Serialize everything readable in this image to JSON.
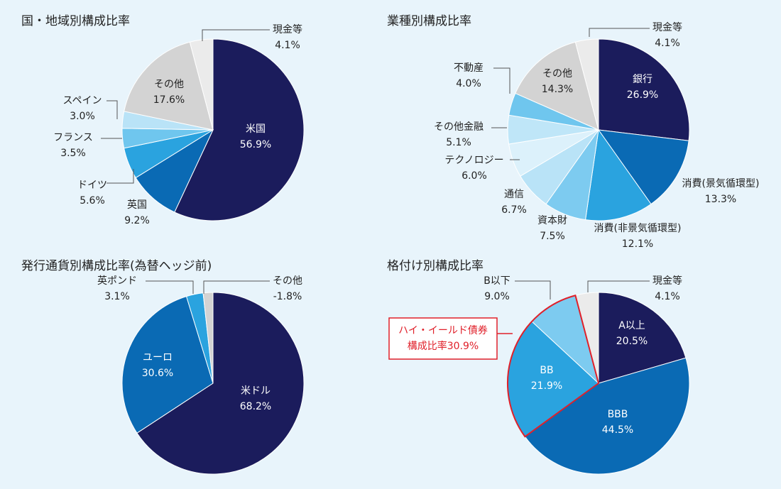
{
  "chart_data": [
    {
      "type": "pie",
      "title": "国・地域別構成比率",
      "categories": [
        "米国",
        "英国",
        "ドイツ",
        "フランス",
        "スペイン",
        "その他",
        "現金等"
      ],
      "values": [
        56.9,
        9.2,
        5.6,
        3.5,
        3.0,
        17.6,
        4.1
      ],
      "value_labels": [
        "56.9%",
        "9.2%",
        "5.6%",
        "3.5%",
        "3.0%",
        "17.6%",
        "4.1%"
      ],
      "colors": [
        "#1b1c5c",
        "#0a6ab4",
        "#2aa3df",
        "#6fc6ee",
        "#b9e3f7",
        "#d3d3d3",
        "#ebebeb"
      ]
    },
    {
      "type": "pie",
      "title": "業種別構成比率",
      "categories": [
        "銀行",
        "消費(景気循環型)",
        "消費(非景気循環型)",
        "資本財",
        "通信",
        "テクノロジー",
        "その他金融",
        "不動産",
        "その他",
        "現金等"
      ],
      "values": [
        26.9,
        13.3,
        12.1,
        7.5,
        6.7,
        6.0,
        5.1,
        4.0,
        14.3,
        4.1
      ],
      "value_labels": [
        "26.9%",
        "13.3%",
        "12.1%",
        "7.5%",
        "6.7%",
        "6.0%",
        "5.1%",
        "4.0%",
        "14.3%",
        "4.1%"
      ],
      "colors": [
        "#1b1c5c",
        "#0a6ab4",
        "#2aa3df",
        "#7dcbf0",
        "#b9e3f7",
        "#dcf1fb",
        "#bfe6f8",
        "#6fc6ee",
        "#d3d3d3",
        "#ebebeb"
      ]
    },
    {
      "type": "pie",
      "title": "発行通貨別構成比率(為替ヘッジ前)",
      "categories": [
        "米ドル",
        "ユーロ",
        "英ポンド",
        "その他"
      ],
      "values": [
        68.2,
        30.6,
        3.1,
        -1.8
      ],
      "value_labels": [
        "68.2%",
        "30.6%",
        "3.1%",
        "-1.8%"
      ],
      "colors": [
        "#1b1c5c",
        "#0a6ab4",
        "#2aa3df",
        "#d3d3d3"
      ]
    },
    {
      "type": "pie",
      "title": "格付け別構成比率",
      "categories": [
        "A以上",
        "BBB",
        "BB",
        "B以下",
        "現金等"
      ],
      "values": [
        20.5,
        44.5,
        21.9,
        9.0,
        4.1
      ],
      "value_labels": [
        "20.5%",
        "44.5%",
        "21.9%",
        "9.0%",
        "4.1%"
      ],
      "colors": [
        "#1b1c5c",
        "#0a6ab4",
        "#2aa3df",
        "#7dcbf0",
        "#ebebeb"
      ],
      "annotation": [
        "ハイ・イールド債券",
        "構成比率30.9%"
      ]
    }
  ]
}
